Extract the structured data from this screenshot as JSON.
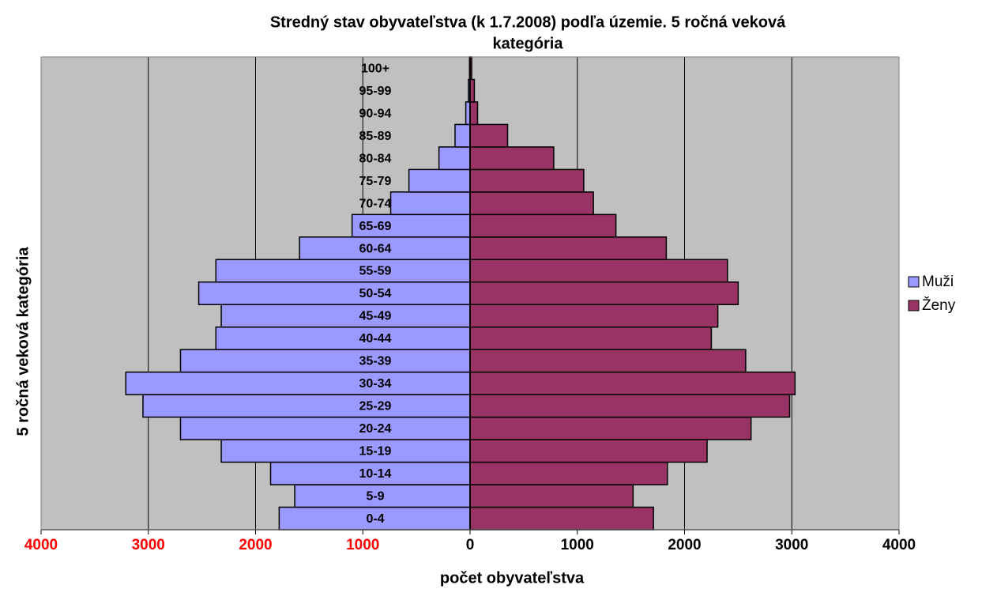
{
  "chart_data": {
    "type": "pyramid",
    "title": [
      "Stredný stav obyvateľstva (k 1.7.2008) podľa územie. 5 ročná veková",
      "kategória"
    ],
    "xlabel": "počet obyvateľstva",
    "ylabel": "5 ročná veková kategória",
    "categories": [
      "0-4",
      "5-9",
      "10-14",
      "15-19",
      "20-24",
      "25-29",
      "30-34",
      "35-39",
      "40-44",
      "45-49",
      "50-54",
      "55-59",
      "60-64",
      "65-69",
      "70-74",
      "75-79",
      "80-84",
      "85-89",
      "90-94",
      "95-99",
      "100+"
    ],
    "series": [
      {
        "name": "Muži",
        "color": "#9999ff",
        "values": [
          -1780,
          -1635,
          -1860,
          -2320,
          -2700,
          -3050,
          -3210,
          -2700,
          -2370,
          -2320,
          -2530,
          -2370,
          -1590,
          -1100,
          -740,
          -570,
          -290,
          -140,
          -40,
          -15,
          -5
        ]
      },
      {
        "name": "Ženy",
        "color": "#993366",
        "values": [
          1710,
          1520,
          1840,
          2210,
          2620,
          2980,
          3030,
          2570,
          2250,
          2310,
          2500,
          2400,
          1830,
          1360,
          1150,
          1060,
          780,
          350,
          70,
          40,
          15
        ]
      }
    ],
    "xlim": [
      -4000,
      4000
    ],
    "xticks": [
      {
        "value": -4000,
        "label": "4000"
      },
      {
        "value": -3000,
        "label": "3000"
      },
      {
        "value": -2000,
        "label": "2000"
      },
      {
        "value": -1000,
        "label": "1000"
      },
      0,
      1000,
      2000,
      3000,
      4000
    ],
    "negative_tick_color": "#ff0000",
    "grid": true,
    "plot_background": "#c0c0c0",
    "legend": "right"
  }
}
